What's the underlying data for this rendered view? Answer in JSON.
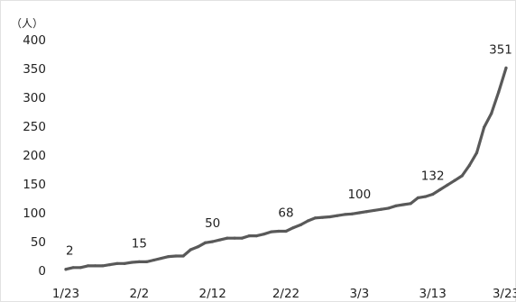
{
  "chart_data": {
    "type": "line",
    "unit_label": "（人）",
    "x_tick_labels": [
      "1/23",
      "2/2",
      "2/12",
      "2/22",
      "3/3",
      "3/13",
      "3/23"
    ],
    "x_tick_index": [
      0,
      10,
      20,
      30,
      40,
      50,
      60
    ],
    "y_ticks": [
      0,
      50,
      100,
      150,
      200,
      250,
      300,
      350,
      400
    ],
    "ylim": [
      0,
      400
    ],
    "xlim_index": [
      0,
      60
    ],
    "line_color": "#595959",
    "series": [
      {
        "values": [
          2,
          5,
          5,
          8,
          8,
          8,
          10,
          12,
          12,
          14,
          15,
          15,
          18,
          21,
          24,
          25,
          25,
          36,
          41,
          48,
          50,
          53,
          56,
          56,
          56,
          60,
          60,
          63,
          67,
          68,
          68,
          74,
          79,
          86,
          91,
          92,
          93,
          95,
          97,
          98,
          100,
          102,
          104,
          106,
          108,
          112,
          114,
          116,
          126,
          128,
          132,
          140,
          148,
          156,
          164,
          182,
          204,
          248,
          272,
          310,
          351
        ]
      }
    ],
    "data_labels": [
      {
        "x_index": 0,
        "value": 2,
        "text": "2"
      },
      {
        "x_index": 10,
        "value": 15,
        "text": "15"
      },
      {
        "x_index": 20,
        "value": 50,
        "text": "50"
      },
      {
        "x_index": 30,
        "value": 68,
        "text": "68"
      },
      {
        "x_index": 40,
        "value": 100,
        "text": "100"
      },
      {
        "x_index": 50,
        "value": 132,
        "text": "132"
      },
      {
        "x_index": 60,
        "value": 351,
        "text": "351"
      }
    ]
  }
}
